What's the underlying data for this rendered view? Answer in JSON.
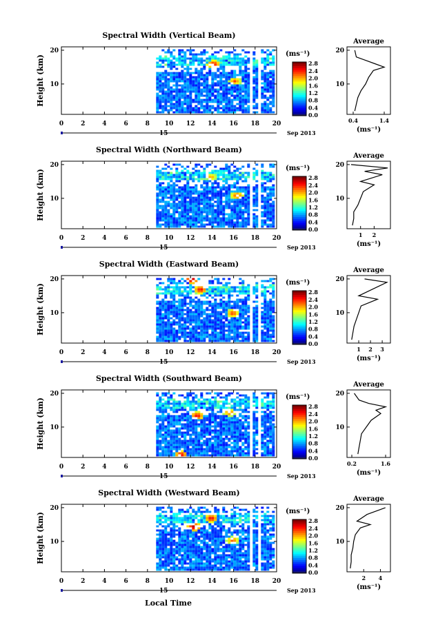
{
  "figure": {
    "xlabel": "Local Time",
    "date_label": "Sep 2013",
    "day_label": "15",
    "colorbar_unit": "(ms⁻¹)",
    "colorbar_ticks": [
      "0.0",
      "0.4",
      "0.8",
      "1.2",
      "1.6",
      "2.0",
      "2.4",
      "2.8"
    ],
    "x_ticks": [
      "0",
      "2",
      "4",
      "6",
      "8",
      "10",
      "12",
      "14",
      "16",
      "18",
      "20"
    ],
    "y_ticks": [
      "10",
      "20"
    ],
    "avg_title": "Average",
    "avg_y_ticks": [
      "10",
      "20"
    ],
    "avg_xlabel": "(ms⁻¹)"
  },
  "chart_data": [
    {
      "type": "heatmap",
      "title": "Spectral Width (Vertical Beam)",
      "ylabel": "Height (km)",
      "xlabel": "",
      "xlim": [
        0,
        20
      ],
      "ylim": [
        1,
        21
      ],
      "zlim": [
        0,
        2.8
      ],
      "data_start_time": 8.8,
      "data_end_time": 19.6,
      "gaps": [
        [
          17.5,
          17.7
        ],
        [
          18.1,
          18.5
        ]
      ],
      "features": [
        {
          "time": 14.0,
          "height": 15.5,
          "value": 2.6
        },
        {
          "time": 16.0,
          "height": 10.5,
          "value": 2.3
        }
      ],
      "average": {
        "title": "Average",
        "xticks": [
          "0.4",
          "1.4"
        ],
        "xlim": [
          0.2,
          1.6
        ],
        "values": [
          [
            0.45,
            2
          ],
          [
            0.5,
            4
          ],
          [
            0.55,
            6
          ],
          [
            0.65,
            8
          ],
          [
            0.8,
            10
          ],
          [
            0.9,
            12
          ],
          [
            1.05,
            14
          ],
          [
            1.4,
            15
          ],
          [
            1.1,
            16
          ],
          [
            0.8,
            17
          ],
          [
            0.5,
            18
          ],
          [
            0.45,
            20
          ]
        ]
      }
    },
    {
      "type": "heatmap",
      "title": "Spectral Width (Northward Beam)",
      "ylabel": "Height (km)",
      "xlabel": "",
      "xlim": [
        0,
        20
      ],
      "ylim": [
        1,
        21
      ],
      "zlim": [
        0,
        2.8
      ],
      "data_start_time": 8.8,
      "data_end_time": 19.6,
      "gaps": [
        [
          17.5,
          17.7
        ],
        [
          18.1,
          18.5
        ]
      ],
      "features": [
        {
          "time": 13.8,
          "height": 16.0,
          "value": 2.1
        },
        {
          "time": 16.2,
          "height": 10.5,
          "value": 2.4
        }
      ],
      "average": {
        "title": "Average",
        "xticks": [
          "1",
          "2"
        ],
        "xlim": [
          0,
          3.2
        ],
        "values": [
          [
            0.4,
            2
          ],
          [
            0.5,
            4
          ],
          [
            0.5,
            6
          ],
          [
            0.8,
            8
          ],
          [
            1.0,
            10
          ],
          [
            1.2,
            12
          ],
          [
            2.0,
            14
          ],
          [
            1.0,
            15
          ],
          [
            2.6,
            17
          ],
          [
            1.3,
            18
          ],
          [
            3.0,
            19
          ],
          [
            0.3,
            20
          ]
        ]
      }
    },
    {
      "type": "heatmap",
      "title": "Spectral Width (Eastward Beam)",
      "ylabel": "Height (km)",
      "xlabel": "",
      "xlim": [
        0,
        20
      ],
      "ylim": [
        1,
        21
      ],
      "zlim": [
        0,
        2.8
      ],
      "data_start_time": 8.8,
      "data_end_time": 19.6,
      "gaps": [
        [
          17.5,
          17.7
        ],
        [
          18.1,
          18.5
        ]
      ],
      "features": [
        {
          "time": 12.8,
          "height": 16.5,
          "value": 2.6
        },
        {
          "time": 15.8,
          "height": 9.5,
          "value": 2.4
        },
        {
          "time": 12.0,
          "height": 19.5,
          "value": 2.8
        }
      ],
      "average": {
        "title": "Average",
        "xticks": [
          "1",
          "2",
          "3"
        ],
        "xlim": [
          0,
          3.7
        ],
        "values": [
          [
            0.4,
            2
          ],
          [
            0.5,
            4
          ],
          [
            0.6,
            6
          ],
          [
            0.8,
            8
          ],
          [
            1.0,
            10
          ],
          [
            1.2,
            12
          ],
          [
            2.6,
            14
          ],
          [
            1.0,
            15
          ],
          [
            2.2,
            17
          ],
          [
            3.4,
            19
          ],
          [
            1.5,
            20
          ]
        ]
      }
    },
    {
      "type": "heatmap",
      "title": "Spectral Width (Southward Beam)",
      "ylabel": "Height (km)",
      "xlabel": "",
      "xlim": [
        0,
        20
      ],
      "ylim": [
        1,
        21
      ],
      "zlim": [
        0,
        2.8
      ],
      "data_start_time": 8.8,
      "data_end_time": 19.6,
      "gaps": [
        [
          17.5,
          17.7
        ],
        [
          18.1,
          18.5
        ]
      ],
      "features": [
        {
          "time": 12.5,
          "height": 13.0,
          "value": 2.6
        },
        {
          "time": 15.5,
          "height": 14.0,
          "value": 2.3
        },
        {
          "time": 11.0,
          "height": 1.5,
          "value": 2.6
        }
      ],
      "average": {
        "title": "Average",
        "xticks": [
          "0.2",
          "1.6"
        ],
        "xlim": [
          0,
          1.8
        ],
        "values": [
          [
            0.45,
            2
          ],
          [
            0.5,
            4
          ],
          [
            0.55,
            6
          ],
          [
            0.6,
            8
          ],
          [
            0.8,
            10
          ],
          [
            1.0,
            12
          ],
          [
            1.4,
            14
          ],
          [
            1.2,
            15
          ],
          [
            1.6,
            16
          ],
          [
            0.9,
            17
          ],
          [
            0.5,
            18
          ],
          [
            0.3,
            20
          ]
        ]
      }
    },
    {
      "type": "heatmap",
      "title": "Spectral Width (Westward Beam)",
      "ylabel": "Height (km)",
      "xlabel": "",
      "xlim": [
        0,
        20
      ],
      "ylim": [
        1,
        21
      ],
      "zlim": [
        0,
        2.8
      ],
      "data_start_time": 8.8,
      "data_end_time": 19.6,
      "gaps": [
        [
          17.5,
          17.7
        ],
        [
          18.1,
          18.5
        ]
      ],
      "features": [
        {
          "time": 13.8,
          "height": 16.5,
          "value": 2.6
        },
        {
          "time": 12.2,
          "height": 14.0,
          "value": 2.8
        },
        {
          "time": 15.8,
          "height": 10.0,
          "value": 2.3
        }
      ],
      "average": {
        "title": "Average",
        "xticks": [
          "2",
          "4"
        ],
        "xlim": [
          0,
          5.2
        ],
        "values": [
          [
            0.4,
            2
          ],
          [
            0.5,
            4
          ],
          [
            0.5,
            6
          ],
          [
            0.7,
            8
          ],
          [
            0.8,
            10
          ],
          [
            1.0,
            12
          ],
          [
            1.6,
            14
          ],
          [
            2.8,
            15
          ],
          [
            1.2,
            16
          ],
          [
            2.4,
            18
          ],
          [
            4.6,
            20
          ]
        ]
      }
    }
  ]
}
